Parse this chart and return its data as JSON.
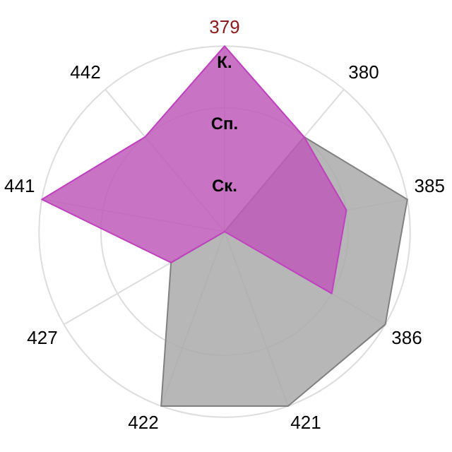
{
  "chart_data": {
    "type": "radar",
    "categories": [
      "379",
      "380",
      "385",
      "386",
      "421",
      "422",
      "427",
      "441",
      "442"
    ],
    "series": [
      {
        "color": "#c040c0",
        "values": [
          3,
          2,
          2,
          2,
          0,
          0,
          1,
          3,
          2
        ]
      },
      {
        "color": "#808080",
        "values": [
          null,
          2,
          3,
          3,
          3,
          3,
          1,
          0,
          0
        ]
      }
    ],
    "ylim": [
      0,
      3
    ],
    "yticks": [
      {
        "value": 1,
        "label": "Ск."
      },
      {
        "value": 2,
        "label": "Сп."
      },
      {
        "value": 3,
        "label": "К."
      }
    ],
    "grid": true,
    "legend": false,
    "marker": "none"
  }
}
